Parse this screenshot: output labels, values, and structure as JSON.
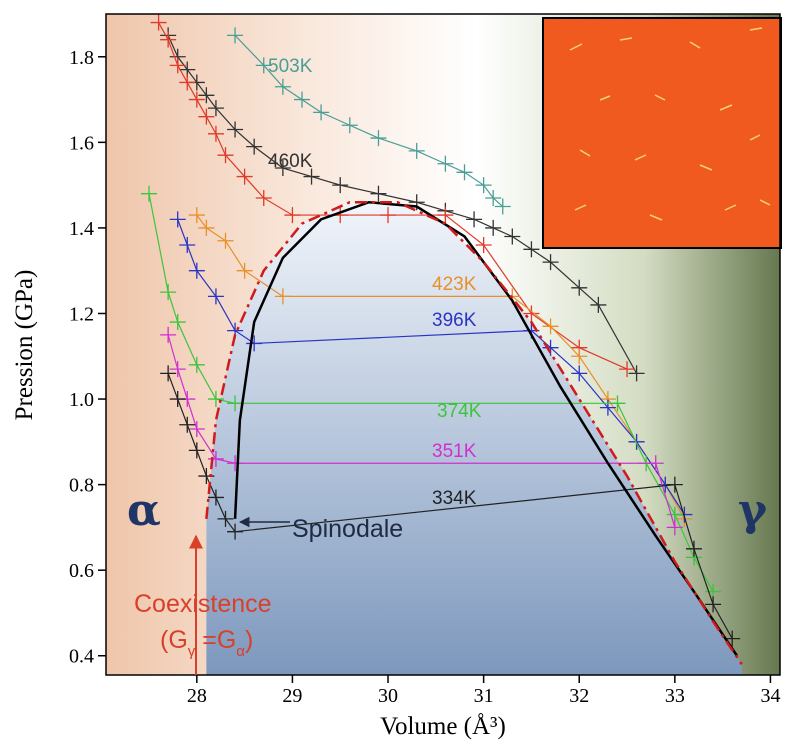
{
  "chart_data": {
    "type": "line",
    "x_label": "Volume (Å³)",
    "y_label": "Pression (GPa)",
    "xlim": [
      27.05,
      34.1
    ],
    "ylim": [
      0.355,
      1.9
    ],
    "xticks": [
      28,
      29,
      30,
      31,
      32,
      33,
      34
    ],
    "yticks": [
      0.4,
      0.6,
      0.8,
      {
        "value": 1,
        "label": "1.0"
      },
      1.2,
      1.4,
      1.6,
      1.8
    ],
    "grid": false,
    "annotations": {
      "alpha": "α",
      "gamma": "γ",
      "spinodal": "Spinodale",
      "coexistence": "Coexistence",
      "formula": [
        "(G",
        "γ",
        " =G",
        "α",
        ")"
      ]
    },
    "series": [
      {
        "name": "503K",
        "color": "#4a9e96",
        "markers": true,
        "x": [
          28.4,
          28.7,
          28.9,
          29.1,
          29.3,
          29.6,
          29.9,
          30.3,
          30.6,
          30.8,
          31.0,
          31.1,
          31.2
        ],
        "values": [
          1.85,
          1.78,
          1.73,
          1.7,
          1.67,
          1.64,
          1.61,
          1.58,
          1.55,
          1.53,
          1.5,
          1.47,
          1.45
        ]
      },
      {
        "name": "460K",
        "color": "#333333",
        "markers": true,
        "x": [
          27.7,
          27.8,
          27.9,
          28.0,
          28.1,
          28.2,
          28.4,
          28.6,
          28.9,
          29.2,
          29.5,
          29.9,
          30.3,
          30.6,
          30.9,
          31.1,
          31.3,
          31.5,
          31.7,
          32.0,
          32.2,
          32.6
        ],
        "values": [
          1.85,
          1.8,
          1.77,
          1.74,
          1.71,
          1.68,
          1.63,
          1.59,
          1.54,
          1.52,
          1.5,
          1.48,
          1.46,
          1.44,
          1.42,
          1.4,
          1.38,
          1.35,
          1.32,
          1.26,
          1.22,
          1.06
        ]
      },
      {
        "color": "#e03a2a",
        "markers": true,
        "x": [
          27.6,
          27.7,
          27.8,
          27.9,
          28.0,
          28.1,
          28.2,
          28.3,
          28.5,
          28.7,
          29.0,
          29.5,
          30.0,
          30.6,
          31.0,
          31.5,
          32.0,
          32.5
        ],
        "values": [
          1.88,
          1.84,
          1.78,
          1.74,
          1.7,
          1.66,
          1.62,
          1.57,
          1.52,
          1.47,
          1.43,
          1.43,
          1.43,
          1.43,
          1.36,
          1.2,
          1.12,
          1.07
        ]
      },
      {
        "name": "423K",
        "color": "#e8902a",
        "markers": true,
        "x": [
          28.0,
          28.1,
          28.3,
          28.5,
          28.9,
          31.3,
          31.7,
          32.0,
          32.3,
          32.6,
          32.9,
          33.1
        ],
        "values": [
          1.43,
          1.4,
          1.37,
          1.3,
          1.24,
          1.24,
          1.17,
          1.1,
          1.0,
          0.9,
          0.8,
          0.72
        ]
      },
      {
        "name": "396K",
        "color": "#2b35c4",
        "markers": true,
        "x": [
          27.8,
          27.9,
          28.0,
          28.2,
          28.4,
          28.6,
          31.5,
          31.7,
          32.0,
          32.3,
          32.6,
          32.9,
          33.1
        ],
        "values": [
          1.42,
          1.36,
          1.3,
          1.24,
          1.16,
          1.13,
          1.16,
          1.12,
          1.06,
          0.98,
          0.9,
          0.8,
          0.73
        ]
      },
      {
        "name": "374K",
        "color": "#3ec43c",
        "markers": true,
        "x": [
          27.5,
          27.7,
          27.8,
          28.0,
          28.2,
          28.4,
          32.4,
          32.7,
          33.0,
          33.2,
          33.4
        ],
        "values": [
          1.48,
          1.25,
          1.18,
          1.08,
          1.0,
          0.99,
          0.99,
          0.85,
          0.73,
          0.63,
          0.55
        ]
      },
      {
        "name": "351K",
        "color": "#d030d0",
        "markers": true,
        "x": [
          27.7,
          27.8,
          27.9,
          28.0,
          28.2,
          28.4,
          32.8,
          33.0
        ],
        "values": [
          1.15,
          1.07,
          1.0,
          0.93,
          0.86,
          0.85,
          0.85,
          0.7
        ]
      },
      {
        "name": "334K",
        "color": "#222222",
        "markers": true,
        "x": [
          27.7,
          27.8,
          27.9,
          28.0,
          28.1,
          28.2,
          28.3,
          28.4,
          33.0,
          33.2,
          33.4,
          33.6
        ],
        "values": [
          1.06,
          1.0,
          0.94,
          0.88,
          0.82,
          0.77,
          0.72,
          0.69,
          0.8,
          0.65,
          0.52,
          0.44
        ]
      },
      {
        "color": "#000000",
        "markers": false,
        "style": "solid",
        "x": [
          28.4,
          28.45,
          28.6,
          28.9,
          29.3,
          29.8,
          30.3,
          30.8,
          31.3,
          31.8,
          32.3,
          32.8,
          33.2,
          33.5,
          33.65
        ],
        "values": [
          0.72,
          0.95,
          1.18,
          1.33,
          1.42,
          1.46,
          1.45,
          1.38,
          1.23,
          1.03,
          0.85,
          0.68,
          0.55,
          0.45,
          0.4
        ]
      },
      {
        "color": "#d11a1a",
        "markers": false,
        "style": "dashdot",
        "x": [
          28.1,
          28.2,
          28.4,
          28.7,
          29.1,
          29.6,
          30.1,
          30.6,
          31.0,
          31.5,
          32.0,
          32.5,
          33.0,
          33.4,
          33.7
        ],
        "values": [
          0.72,
          0.95,
          1.15,
          1.3,
          1.41,
          1.46,
          1.46,
          1.41,
          1.32,
          1.18,
          1.0,
          0.82,
          0.62,
          0.48,
          0.38
        ]
      }
    ]
  }
}
